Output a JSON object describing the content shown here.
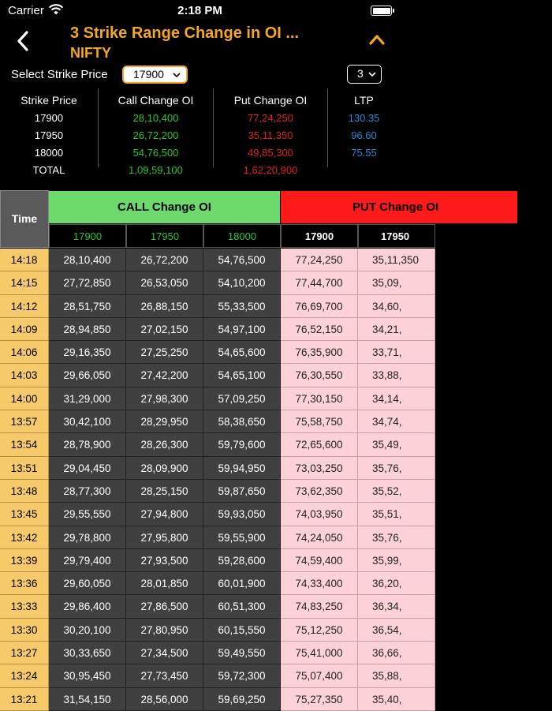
{
  "status_bar": {
    "carrier": "Carrier",
    "time": "2:18 PM"
  },
  "nav": {
    "title": "3 Strike Range Change in OI ...",
    "subtitle": "NIFTY"
  },
  "select": {
    "label": "Select Strike Price",
    "strike_value": "17900",
    "range_value": "3"
  },
  "summary": {
    "headers": [
      "Strike Price",
      "Call Change OI",
      "Put Change OI",
      "LTP"
    ],
    "rows": [
      {
        "strike": "17900",
        "call": "28,10,400",
        "put": "77,24,250",
        "ltp": "130.35"
      },
      {
        "strike": "17950",
        "call": "26,72,200",
        "put": "35,11,350",
        "ltp": "96.60"
      },
      {
        "strike": "18000",
        "call": "54,76,500",
        "put": "49,85,300",
        "ltp": "75.55"
      },
      {
        "strike": "TOTAL",
        "call": "1,09,59,100",
        "put": "1,62,20,900",
        "ltp": ""
      }
    ]
  },
  "grid": {
    "time_header": "Time",
    "call_header": "CALL Change OI",
    "put_header": "PUT Change OI",
    "call_strikes": [
      "17900",
      "17950",
      "18000"
    ],
    "put_strikes": [
      "17900",
      "17950"
    ],
    "rows": [
      {
        "time": "14:18",
        "call": [
          "28,10,400",
          "26,72,200",
          "54,76,500"
        ],
        "put": [
          "77,24,250",
          "35,11,350"
        ]
      },
      {
        "time": "14:15",
        "call": [
          "27,72,850",
          "26,53,050",
          "54,10,200"
        ],
        "put": [
          "77,44,700",
          "35,09,"
        ]
      },
      {
        "time": "14:12",
        "call": [
          "28,51,750",
          "26,88,150",
          "55,33,500"
        ],
        "put": [
          "76,69,700",
          "34,60,"
        ]
      },
      {
        "time": "14:09",
        "call": [
          "28,94,850",
          "27,02,150",
          "54,97,100"
        ],
        "put": [
          "76,52,150",
          "34,21,"
        ]
      },
      {
        "time": "14:06",
        "call": [
          "29,16,350",
          "27,25,250",
          "54,65,600"
        ],
        "put": [
          "76,35,900",
          "33,71,"
        ]
      },
      {
        "time": "14:03",
        "call": [
          "29,66,050",
          "27,42,200",
          "54,65,100"
        ],
        "put": [
          "76,30,550",
          "33,88,"
        ]
      },
      {
        "time": "14:00",
        "call": [
          "31,29,000",
          "27,98,300",
          "57,09,250"
        ],
        "put": [
          "77,30,150",
          "34,14,"
        ]
      },
      {
        "time": "13:57",
        "call": [
          "30,42,100",
          "28,29,950",
          "58,38,650"
        ],
        "put": [
          "75,58,750",
          "34,74,"
        ]
      },
      {
        "time": "13:54",
        "call": [
          "28,78,900",
          "28,26,300",
          "59,79,600"
        ],
        "put": [
          "72,65,600",
          "35,49,"
        ]
      },
      {
        "time": "13:51",
        "call": [
          "29,04,450",
          "28,09,900",
          "59,94,950"
        ],
        "put": [
          "73,03,250",
          "35,76,"
        ]
      },
      {
        "time": "13:48",
        "call": [
          "28,77,300",
          "28,25,150",
          "59,87,650"
        ],
        "put": [
          "73,62,350",
          "35,52,"
        ]
      },
      {
        "time": "13:45",
        "call": [
          "29,55,550",
          "27,94,800",
          "59,93,050"
        ],
        "put": [
          "74,03,950",
          "35,51,"
        ]
      },
      {
        "time": "13:42",
        "call": [
          "29,78,800",
          "27,95,800",
          "59,55,900"
        ],
        "put": [
          "74,24,050",
          "35,76,"
        ]
      },
      {
        "time": "13:39",
        "call": [
          "29,79,400",
          "27,93,500",
          "59,28,600"
        ],
        "put": [
          "74,59,400",
          "35,99,"
        ]
      },
      {
        "time": "13:36",
        "call": [
          "29,60,050",
          "28,01,850",
          "60,01,900"
        ],
        "put": [
          "74,33,400",
          "36,20,"
        ]
      },
      {
        "time": "13:33",
        "call": [
          "29,86,400",
          "27,86,500",
          "60,51,300"
        ],
        "put": [
          "74,83,250",
          "36,34,"
        ]
      },
      {
        "time": "13:30",
        "call": [
          "30,20,100",
          "27,80,950",
          "60,15,550"
        ],
        "put": [
          "75,12,250",
          "36,54,"
        ]
      },
      {
        "time": "13:27",
        "call": [
          "30,33,650",
          "27,34,500",
          "59,49,550"
        ],
        "put": [
          "75,41,000",
          "36,66,"
        ]
      },
      {
        "time": "13:24",
        "call": [
          "30,95,450",
          "27,73,450",
          "59,72,300"
        ],
        "put": [
          "75,07,400",
          "35,88,"
        ]
      },
      {
        "time": "13:21",
        "call": [
          "31,54,150",
          "28,56,000",
          "59,69,250"
        ],
        "put": [
          "75,27,350",
          "35,40,"
        ]
      }
    ]
  },
  "colors": {
    "accent": "#f5a623",
    "call_green": "#2ec52e",
    "put_red": "#e0202a",
    "ltp_blue": "#1e8fd5",
    "call_header_bg": "#6cdb6c",
    "put_header_bg": "#ff1a1a",
    "time_cell_bg": "#f6c96a",
    "call_cell_bg": "#404040",
    "put_cell_bg": "#fcd2d8"
  },
  "icons": {
    "back": "chevron-left-icon",
    "collapse": "chevron-up-icon",
    "wifi": "wifi-icon",
    "battery": "battery-icon",
    "dropdown": "chevron-down-icon"
  }
}
